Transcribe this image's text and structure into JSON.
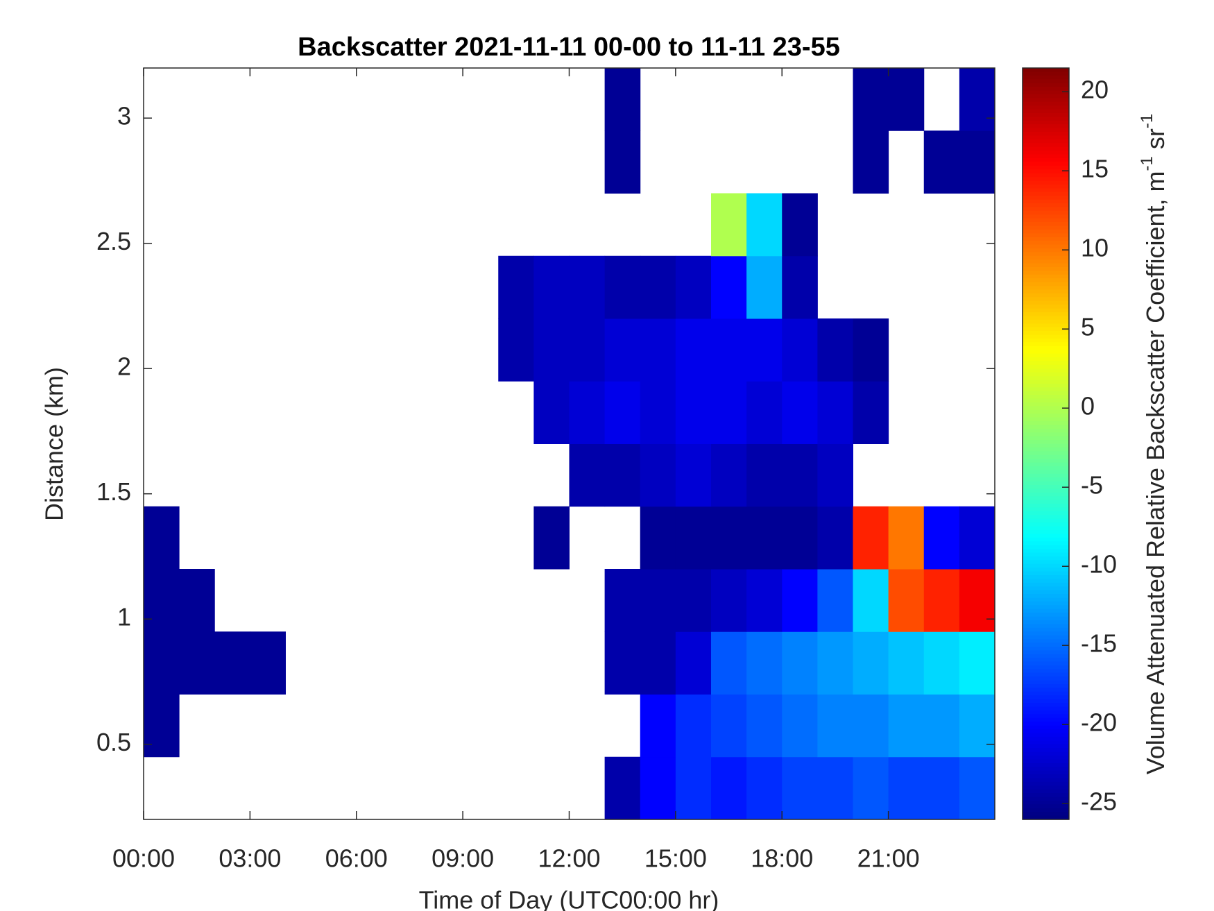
{
  "chart_data": {
    "type": "heatmap",
    "title": "Backscatter 2021-11-11 00-00 to 11-11 23-55",
    "xlabel": "Time of Day (UTC00:00 hr)",
    "ylabel": "Distance (km)",
    "colorbar_label": [
      "Volume Attenuated Relative Backscatter Coefficient, m",
      "-1",
      " sr",
      "-1"
    ],
    "colormap": "jet",
    "x_edges": [
      0,
      1,
      2,
      3,
      4,
      5,
      6,
      7,
      8,
      9,
      10,
      11,
      12,
      13,
      14,
      15,
      16,
      17,
      18,
      19,
      20,
      21,
      22,
      23,
      24
    ],
    "y_edges": [
      0.2,
      0.45,
      0.7,
      0.95,
      1.2,
      1.45,
      1.7,
      1.95,
      2.2,
      2.45,
      2.7,
      2.95,
      3.2
    ],
    "z": [
      [
        null,
        null,
        null,
        null,
        null,
        null,
        null,
        null,
        null,
        null,
        null,
        null,
        null,
        -24,
        -20,
        -18,
        -19,
        -18,
        -17,
        -17,
        -16,
        -17,
        -17,
        -16
      ],
      [
        -25,
        null,
        null,
        null,
        null,
        null,
        null,
        null,
        null,
        null,
        null,
        null,
        null,
        null,
        -20,
        -18,
        -17,
        -16,
        -15,
        -14,
        -14,
        -13,
        -13,
        -12
      ],
      [
        -25,
        -25,
        -25,
        -25,
        null,
        null,
        null,
        null,
        null,
        null,
        null,
        null,
        null,
        -24,
        -24,
        -22,
        -16,
        -15,
        -14,
        -13,
        -12,
        -11,
        -10,
        -9
      ],
      [
        -25,
        -25,
        null,
        null,
        null,
        null,
        null,
        null,
        null,
        null,
        null,
        null,
        null,
        -24,
        -24,
        -24,
        -23,
        -22,
        -20,
        -16,
        -10,
        12,
        14,
        16
      ],
      [
        -25,
        null,
        null,
        null,
        null,
        null,
        null,
        null,
        null,
        null,
        null,
        -25,
        null,
        null,
        -25,
        -25,
        -25,
        -25,
        -25,
        -24,
        14,
        10,
        -20,
        -22
      ],
      [
        null,
        null,
        null,
        null,
        null,
        null,
        null,
        null,
        null,
        null,
        null,
        null,
        -24,
        -24,
        -23,
        -22,
        -23,
        -24,
        -24,
        -23,
        null,
        null,
        null,
        null
      ],
      [
        null,
        null,
        null,
        null,
        null,
        null,
        null,
        null,
        null,
        null,
        null,
        -23,
        -22,
        -21,
        -22,
        -21,
        -21,
        -22,
        -21,
        -22,
        -24,
        null,
        null,
        null
      ],
      [
        null,
        null,
        null,
        null,
        null,
        null,
        null,
        null,
        null,
        null,
        -24,
        -23,
        -23,
        -22,
        -22,
        -21,
        -21,
        -21,
        -22,
        -24,
        -25,
        null,
        null,
        null
      ],
      [
        null,
        null,
        null,
        null,
        null,
        null,
        null,
        null,
        null,
        null,
        -24,
        -23,
        -23,
        -24,
        -24,
        -23,
        -20,
        -12,
        -24,
        null,
        null,
        null,
        null,
        null
      ],
      [
        null,
        null,
        null,
        null,
        null,
        null,
        null,
        null,
        null,
        null,
        null,
        null,
        null,
        null,
        null,
        null,
        0,
        -10,
        -25,
        null,
        null,
        null,
        null,
        null
      ],
      [
        null,
        null,
        null,
        null,
        null,
        null,
        null,
        null,
        null,
        null,
        null,
        null,
        null,
        -25,
        null,
        null,
        null,
        null,
        null,
        null,
        -25,
        null,
        -25,
        -25
      ],
      [
        null,
        null,
        null,
        null,
        null,
        null,
        null,
        null,
        null,
        null,
        null,
        null,
        null,
        -25,
        null,
        null,
        null,
        null,
        null,
        null,
        -25,
        -25,
        null,
        -24
      ]
    ],
    "xlim": [
      0,
      24
    ],
    "xticks": [
      {
        "value": 0,
        "label": "00:00"
      },
      {
        "value": 3,
        "label": "03:00"
      },
      {
        "value": 6,
        "label": "06:00"
      },
      {
        "value": 9,
        "label": "09:00"
      },
      {
        "value": 12,
        "label": "12:00"
      },
      {
        "value": 15,
        "label": "15:00"
      },
      {
        "value": 18,
        "label": "18:00"
      },
      {
        "value": 21,
        "label": "21:00"
      }
    ],
    "ylim": [
      0.2,
      3.2
    ],
    "yticks": [
      0.5,
      1,
      1.5,
      2,
      2.5,
      3
    ],
    "clim": [
      -26,
      21.5
    ],
    "cticks": [
      -25,
      -20,
      -15,
      -10,
      -5,
      0,
      5,
      10,
      15,
      20
    ]
  }
}
